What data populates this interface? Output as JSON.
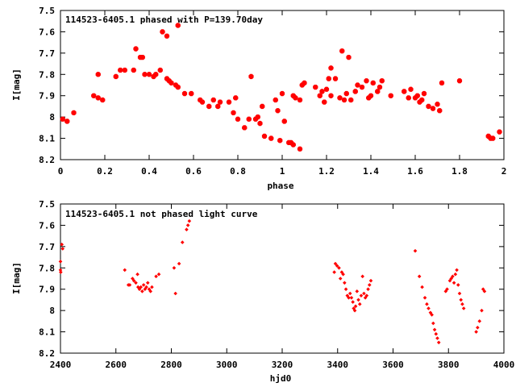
{
  "chart_data": [
    {
      "type": "scatter",
      "title": "114523-6405.1 phased with P=139.70day",
      "xlabel": "phase",
      "ylabel": "I[mag]",
      "xlim": [
        0,
        2
      ],
      "ylim": [
        7.5,
        8.2
      ],
      "y_inverted": true,
      "grid": false,
      "x_ticks": [
        "0",
        "0.2",
        "0.4",
        "0.6",
        "0.8",
        "1",
        "1.2",
        "1.4",
        "1.6",
        "1.8",
        "2"
      ],
      "y_ticks": [
        "7.5",
        "7.6",
        "7.7",
        "7.8",
        "7.9",
        "8",
        "8.1",
        "8.2"
      ],
      "marker_color": "#ff0000",
      "marker": "star",
      "series": [
        {
          "points": [
            [
              0.01,
              8.01
            ],
            [
              0.03,
              8.02
            ],
            [
              0.06,
              7.98
            ],
            [
              0.15,
              7.9
            ],
            [
              0.17,
              7.91
            ],
            [
              0.17,
              7.8
            ],
            [
              0.19,
              7.92
            ],
            [
              0.25,
              7.81
            ],
            [
              0.27,
              7.78
            ],
            [
              0.29,
              7.78
            ],
            [
              0.33,
              7.78
            ],
            [
              0.34,
              7.68
            ],
            [
              0.36,
              7.72
            ],
            [
              0.37,
              7.72
            ],
            [
              0.38,
              7.8
            ],
            [
              0.4,
              7.8
            ],
            [
              0.42,
              7.81
            ],
            [
              0.43,
              7.8
            ],
            [
              0.45,
              7.78
            ],
            [
              0.46,
              7.6
            ],
            [
              0.48,
              7.62
            ],
            [
              0.48,
              7.82
            ],
            [
              0.49,
              7.83
            ],
            [
              0.5,
              7.84
            ],
            [
              0.52,
              7.85
            ],
            [
              0.53,
              7.57
            ],
            [
              0.53,
              7.86
            ],
            [
              0.56,
              7.89
            ],
            [
              0.59,
              7.89
            ],
            [
              0.63,
              7.92
            ],
            [
              0.64,
              7.93
            ],
            [
              0.67,
              7.95
            ],
            [
              0.69,
              7.92
            ],
            [
              0.71,
              7.95
            ],
            [
              0.72,
              7.93
            ],
            [
              0.76,
              7.93
            ],
            [
              0.78,
              7.98
            ],
            [
              0.79,
              7.91
            ],
            [
              0.8,
              8.01
            ],
            [
              0.83,
              8.05
            ],
            [
              0.85,
              8.01
            ],
            [
              0.86,
              7.81
            ],
            [
              0.88,
              8.01
            ],
            [
              0.89,
              8.0
            ],
            [
              0.9,
              8.03
            ],
            [
              0.91,
              7.95
            ],
            [
              0.92,
              8.09
            ],
            [
              0.95,
              8.1
            ],
            [
              0.97,
              7.92
            ],
            [
              0.98,
              7.97
            ],
            [
              0.99,
              8.11
            ],
            [
              1.0,
              7.89
            ],
            [
              1.01,
              8.02
            ],
            [
              1.03,
              8.12
            ],
            [
              1.04,
              8.12
            ],
            [
              1.05,
              8.13
            ],
            [
              1.05,
              7.9
            ],
            [
              1.06,
              7.91
            ],
            [
              1.08,
              7.92
            ],
            [
              1.08,
              8.15
            ],
            [
              1.09,
              7.85
            ],
            [
              1.1,
              7.84
            ],
            [
              1.15,
              7.86
            ],
            [
              1.17,
              7.9
            ],
            [
              1.18,
              7.88
            ],
            [
              1.19,
              7.93
            ],
            [
              1.2,
              7.87
            ],
            [
              1.21,
              7.82
            ],
            [
              1.22,
              7.9
            ],
            [
              1.22,
              7.77
            ],
            [
              1.24,
              7.82
            ],
            [
              1.26,
              7.91
            ],
            [
              1.27,
              7.69
            ],
            [
              1.28,
              7.92
            ],
            [
              1.29,
              7.89
            ],
            [
              1.3,
              7.72
            ],
            [
              1.31,
              7.92
            ],
            [
              1.33,
              7.88
            ],
            [
              1.34,
              7.85
            ],
            [
              1.36,
              7.86
            ],
            [
              1.38,
              7.83
            ],
            [
              1.39,
              7.91
            ],
            [
              1.4,
              7.9
            ],
            [
              1.41,
              7.84
            ],
            [
              1.43,
              7.88
            ],
            [
              1.44,
              7.86
            ],
            [
              1.45,
              7.83
            ],
            [
              1.49,
              7.9
            ],
            [
              1.55,
              7.88
            ],
            [
              1.57,
              7.91
            ],
            [
              1.58,
              7.87
            ],
            [
              1.6,
              7.91
            ],
            [
              1.61,
              7.9
            ],
            [
              1.62,
              7.93
            ],
            [
              1.63,
              7.92
            ],
            [
              1.64,
              7.89
            ],
            [
              1.66,
              7.95
            ],
            [
              1.68,
              7.96
            ],
            [
              1.7,
              7.94
            ],
            [
              1.71,
              7.97
            ],
            [
              1.72,
              7.84
            ],
            [
              1.8,
              7.83
            ],
            [
              1.93,
              8.09
            ],
            [
              1.94,
              8.1
            ],
            [
              1.95,
              8.1
            ],
            [
              1.98,
              8.07
            ]
          ]
        }
      ]
    },
    {
      "type": "scatter",
      "title": "114523-6405.1 not phased light curve",
      "xlabel": "hjd0",
      "ylabel": "I[mag]",
      "xlim": [
        2400,
        4000
      ],
      "ylim": [
        7.5,
        8.2
      ],
      "y_inverted": true,
      "grid": false,
      "x_ticks": [
        "2400",
        "2600",
        "2800",
        "3000",
        "3200",
        "3400",
        "3600",
        "3800",
        "4000"
      ],
      "y_ticks": [
        "7.5",
        "7.6",
        "7.7",
        "7.8",
        "7.9",
        "8",
        "8.1",
        "8.2"
      ],
      "marker_color": "#ff0000",
      "marker": "diamond",
      "series": [
        {
          "points": [
            [
              2400,
              7.77
            ],
            [
              2400,
              7.81
            ],
            [
              2401,
              7.82
            ],
            [
              2405,
              7.69
            ],
            [
              2408,
              7.71
            ],
            [
              2632,
              7.81
            ],
            [
              2645,
              7.88
            ],
            [
              2650,
              7.88
            ],
            [
              2660,
              7.85
            ],
            [
              2665,
              7.86
            ],
            [
              2672,
              7.87
            ],
            [
              2678,
              7.83
            ],
            [
              2680,
              7.89
            ],
            [
              2685,
              7.9
            ],
            [
              2690,
              7.89
            ],
            [
              2695,
              7.91
            ],
            [
              2700,
              7.88
            ],
            [
              2705,
              7.9
            ],
            [
              2710,
              7.89
            ],
            [
              2715,
              7.87
            ],
            [
              2720,
              7.9
            ],
            [
              2725,
              7.91
            ],
            [
              2730,
              7.89
            ],
            [
              2745,
              7.84
            ],
            [
              2755,
              7.83
            ],
            [
              2810,
              7.8
            ],
            [
              2815,
              7.92
            ],
            [
              2828,
              7.78
            ],
            [
              2840,
              7.68
            ],
            [
              2855,
              7.62
            ],
            [
              2860,
              7.6
            ],
            [
              2865,
              7.58
            ],
            [
              3388,
              7.82
            ],
            [
              3392,
              7.78
            ],
            [
              3398,
              7.79
            ],
            [
              3405,
              7.8
            ],
            [
              3410,
              7.85
            ],
            [
              3415,
              7.82
            ],
            [
              3420,
              7.83
            ],
            [
              3425,
              7.87
            ],
            [
              3430,
              7.9
            ],
            [
              3435,
              7.93
            ],
            [
              3440,
              7.94
            ],
            [
              3445,
              7.92
            ],
            [
              3450,
              7.94
            ],
            [
              3455,
              7.96
            ],
            [
              3458,
              7.99
            ],
            [
              3462,
              8.0
            ],
            [
              3465,
              7.98
            ],
            [
              3470,
              7.91
            ],
            [
              3475,
              7.95
            ],
            [
              3480,
              7.97
            ],
            [
              3485,
              7.93
            ],
            [
              3490,
              7.84
            ],
            [
              3495,
              7.92
            ],
            [
              3500,
              7.94
            ],
            [
              3505,
              7.93
            ],
            [
              3510,
              7.9
            ],
            [
              3515,
              7.88
            ],
            [
              3520,
              7.86
            ],
            [
              3680,
              7.72
            ],
            [
              3695,
              7.84
            ],
            [
              3705,
              7.89
            ],
            [
              3715,
              7.94
            ],
            [
              3722,
              7.97
            ],
            [
              3728,
              7.99
            ],
            [
              3735,
              8.01
            ],
            [
              3740,
              8.02
            ],
            [
              3745,
              8.06
            ],
            [
              3750,
              8.09
            ],
            [
              3755,
              8.11
            ],
            [
              3760,
              8.13
            ],
            [
              3765,
              8.15
            ],
            [
              3790,
              7.91
            ],
            [
              3795,
              7.9
            ],
            [
              3805,
              7.86
            ],
            [
              3810,
              7.85
            ],
            [
              3815,
              7.84
            ],
            [
              3820,
              7.87
            ],
            [
              3825,
              7.83
            ],
            [
              3830,
              7.81
            ],
            [
              3835,
              7.88
            ],
            [
              3840,
              7.92
            ],
            [
              3845,
              7.95
            ],
            [
              3850,
              7.97
            ],
            [
              3855,
              7.99
            ],
            [
              3900,
              8.1
            ],
            [
              3905,
              8.08
            ],
            [
              3912,
              8.05
            ],
            [
              3920,
              8.0
            ],
            [
              3925,
              7.9
            ],
            [
              3930,
              7.91
            ]
          ]
        }
      ]
    }
  ]
}
